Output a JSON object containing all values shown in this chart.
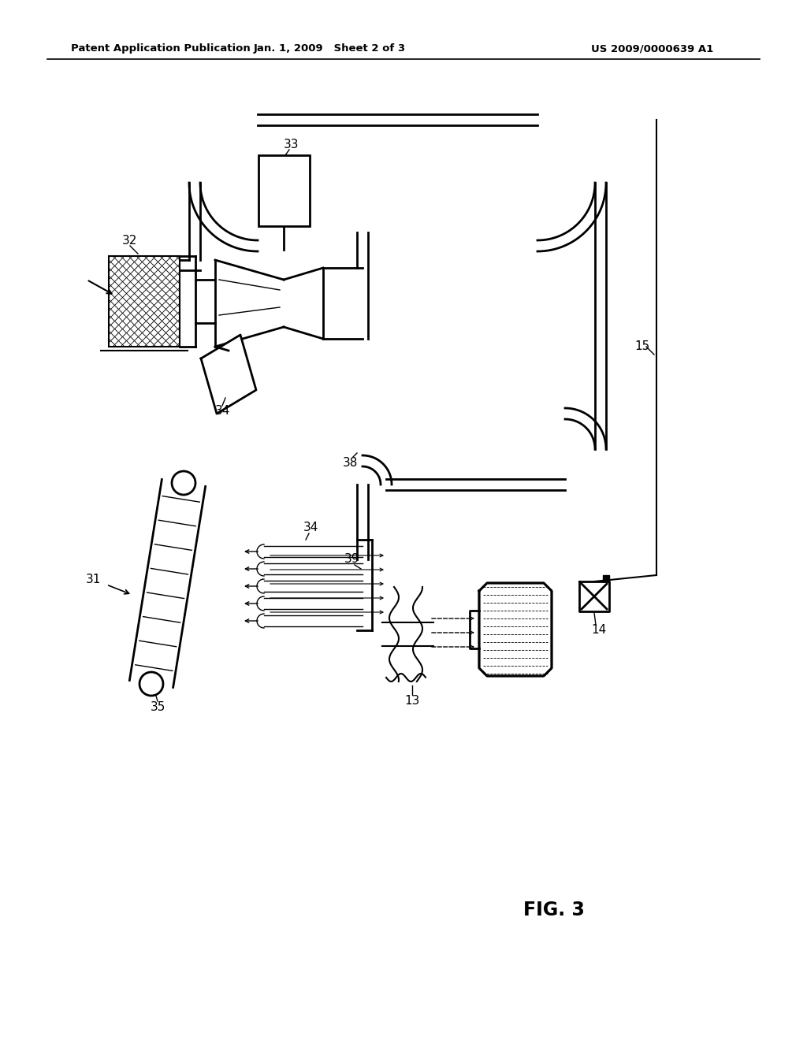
{
  "bg_color": "#ffffff",
  "header_left": "Patent Application Publication",
  "header_mid": "Jan. 1, 2009   Sheet 2 of 3",
  "header_right": "US 2009/0000639 A1",
  "fig_label": "FIG. 3"
}
